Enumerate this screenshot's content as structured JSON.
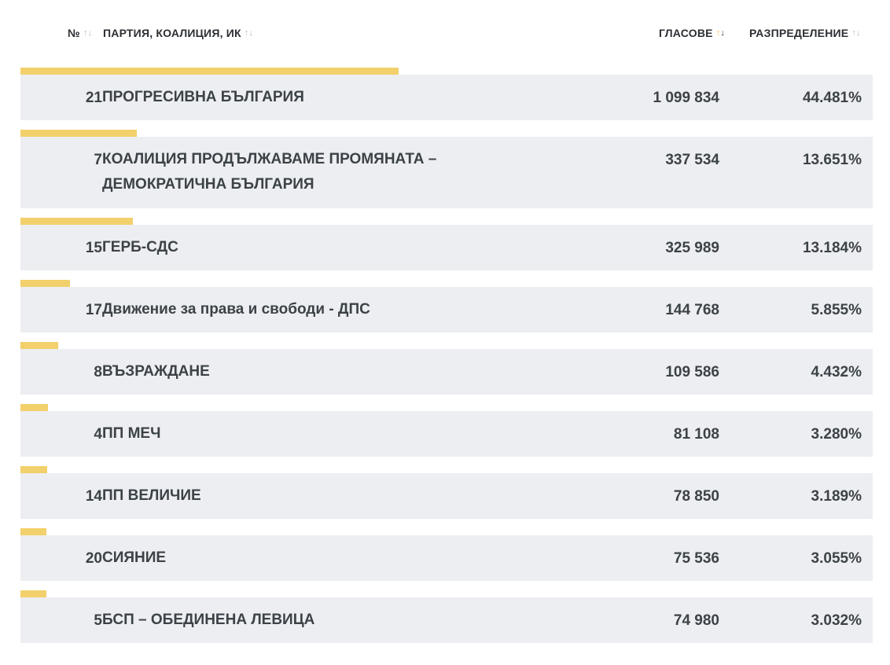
{
  "header": {
    "no_label": "№",
    "party_label": "ПАРТИЯ, КОАЛИЦИЯ, ИК",
    "votes_label": "ГЛАСОВЕ",
    "share_label": "РАЗПРЕДЕЛЕНИЕ",
    "sort_icon": "sort-up-down-icon"
  },
  "colors": {
    "bar": "#f2d06b",
    "row_bg": "#eceef1",
    "text": "#3c4247",
    "sort_active": "#f2c94c"
  },
  "rows": [
    {
      "no": "21",
      "name": "ПРОГРЕСИВНА БЪЛГАРИЯ",
      "votes": "1 099 834",
      "share": "44.481%",
      "share_value": 44.481
    },
    {
      "no": "7",
      "name": "КОАЛИЦИЯ ПРОДЪЛЖАВАМЕ ПРОМЯНАТА – ДЕМОКРАТИЧНА БЪЛГАРИЯ",
      "votes": "337 534",
      "share": "13.651%",
      "share_value": 13.651
    },
    {
      "no": "15",
      "name": "ГЕРБ-СДС",
      "votes": "325 989",
      "share": "13.184%",
      "share_value": 13.184
    },
    {
      "no": "17",
      "name": "Движение за права и свободи - ДПС",
      "votes": "144 768",
      "share": "5.855%",
      "share_value": 5.855
    },
    {
      "no": "8",
      "name": "ВЪЗРАЖДАНЕ",
      "votes": "109 586",
      "share": "4.432%",
      "share_value": 4.432
    },
    {
      "no": "4",
      "name": "ПП МЕЧ",
      "votes": "81 108",
      "share": "3.280%",
      "share_value": 3.28
    },
    {
      "no": "14",
      "name": "ПП ВЕЛИЧИЕ",
      "votes": "78 850",
      "share": "3.189%",
      "share_value": 3.189
    },
    {
      "no": "20",
      "name": "СИЯНИЕ",
      "votes": "75 536",
      "share": "3.055%",
      "share_value": 3.055
    },
    {
      "no": "5",
      "name": "БСП – ОБЕДИНЕНА ЛЕВИЦА",
      "votes": "74 980",
      "share": "3.032%",
      "share_value": 3.032
    }
  ]
}
